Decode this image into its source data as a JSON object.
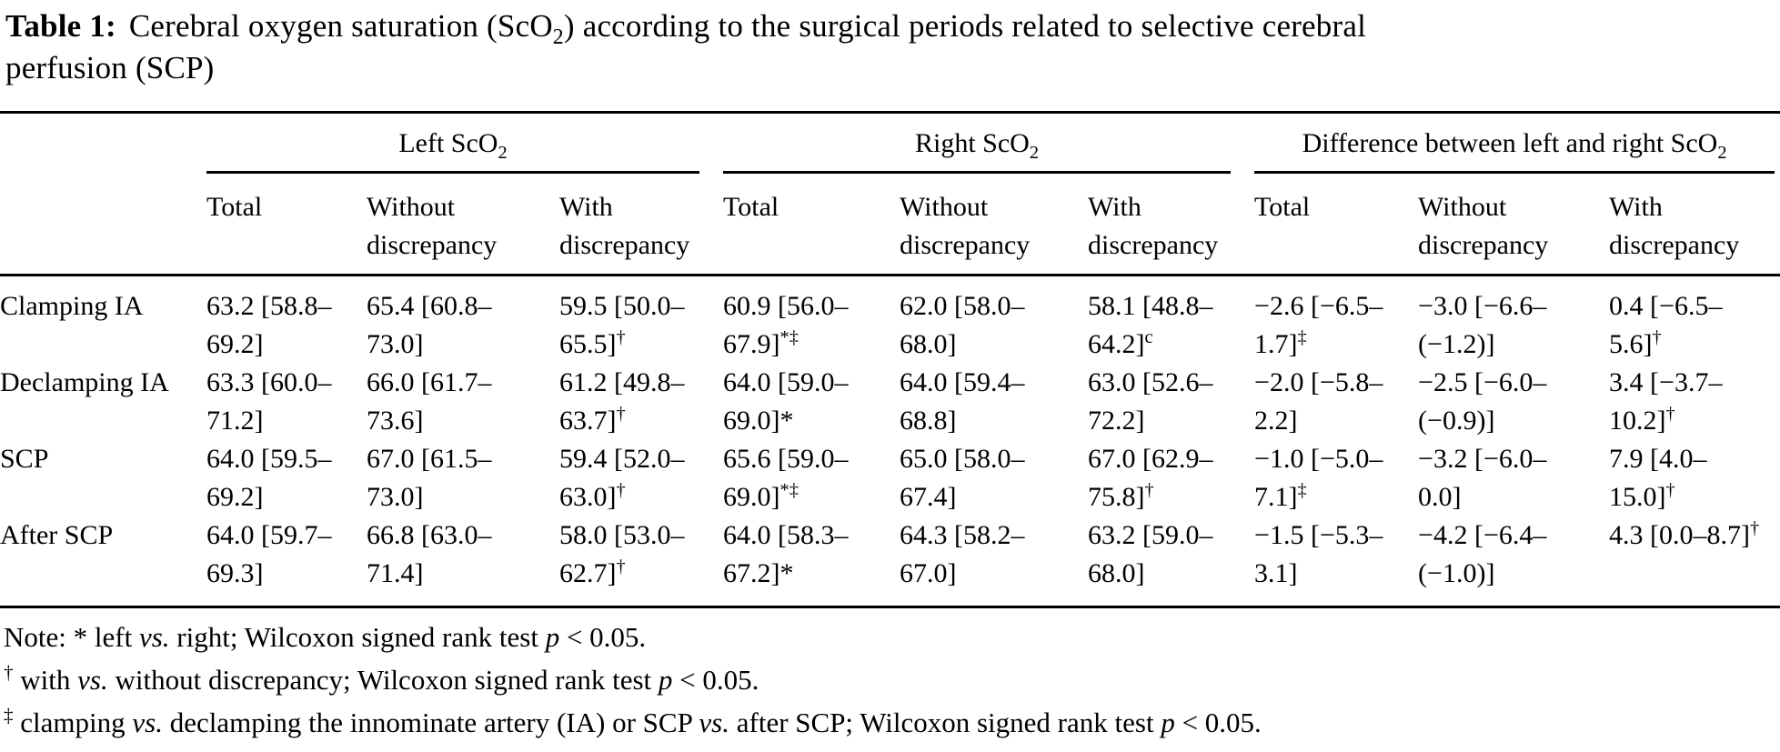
{
  "colors": {
    "text": "#000000",
    "background": "#ffffff",
    "rule": "#000000"
  },
  "title": {
    "label": "Table 1:",
    "text_before_sub": "Cerebral oxygen saturation (ScO",
    "sub": "2",
    "text_after_sub": ") according to the surgical periods related to selective cerebral",
    "line2": "perfusion (SCP)"
  },
  "table": {
    "groups": [
      {
        "name": "Left ScO",
        "sub": "2"
      },
      {
        "name": "Right ScO",
        "sub": "2"
      },
      {
        "name": "Difference between left and right ScO",
        "sub": "2"
      }
    ],
    "subheaders": [
      "Total",
      "Without discrepancy",
      "With discrepancy"
    ],
    "rows": [
      {
        "label": "Clamping IA",
        "cells": [
          {
            "value": "63.2 [58.8–69.2]",
            "sup": ""
          },
          {
            "value": "65.4 [60.8–73.0]",
            "sup": ""
          },
          {
            "value": "59.5 [50.0–65.5]",
            "sup": "†"
          },
          {
            "value": "60.9 [56.0–67.9]",
            "sup": "*‡"
          },
          {
            "value": "62.0 [58.0–68.0]",
            "sup": ""
          },
          {
            "value": "58.1 [48.8–64.2]",
            "sup": "c"
          },
          {
            "value": "−2.6 [−6.5–1.7]",
            "sup": "‡"
          },
          {
            "value": "−3.0 [−6.6–(−1.2)]",
            "sup": ""
          },
          {
            "value": "0.4 [−6.5–5.6]",
            "sup": "†"
          }
        ]
      },
      {
        "label": "Declamping IA",
        "cells": [
          {
            "value": "63.3 [60.0–71.2]",
            "sup": ""
          },
          {
            "value": "66.0 [61.7–73.6]",
            "sup": ""
          },
          {
            "value": "61.2 [49.8–63.7]",
            "sup": "†"
          },
          {
            "value": "64.0 [59.0–69.0]*",
            "sup": ""
          },
          {
            "value": "64.0 [59.4–68.8]",
            "sup": ""
          },
          {
            "value": "63.0 [52.6–72.2]",
            "sup": ""
          },
          {
            "value": "−2.0 [−5.8–2.2]",
            "sup": ""
          },
          {
            "value": "−2.5 [−6.0–(−0.9)]",
            "sup": ""
          },
          {
            "value": "3.4 [−3.7–10.2]",
            "sup": "†"
          }
        ]
      },
      {
        "label": "SCP",
        "cells": [
          {
            "value": "64.0 [59.5–69.2]",
            "sup": ""
          },
          {
            "value": "67.0 [61.5–73.0]",
            "sup": ""
          },
          {
            "value": "59.4 [52.0–63.0]",
            "sup": "†"
          },
          {
            "value": "65.6 [59.0–69.0]",
            "sup": "*‡"
          },
          {
            "value": "65.0 [58.0–67.4]",
            "sup": ""
          },
          {
            "value": "67.0 [62.9–75.8]",
            "sup": "†"
          },
          {
            "value": "−1.0 [−5.0–7.1]",
            "sup": "‡"
          },
          {
            "value": "−3.2 [−6.0–0.0]",
            "sup": ""
          },
          {
            "value": "7.9 [4.0–15.0]",
            "sup": "†"
          }
        ]
      },
      {
        "label": "After SCP",
        "cells": [
          {
            "value": "64.0 [59.7–69.3]",
            "sup": ""
          },
          {
            "value": "66.8 [63.0–71.4]",
            "sup": ""
          },
          {
            "value": "58.0 [53.0–62.7]",
            "sup": "†"
          },
          {
            "value": "64.0 [58.3–67.2]*",
            "sup": ""
          },
          {
            "value": "64.3 [58.2–67.0]",
            "sup": ""
          },
          {
            "value": "63.2 [59.0–68.0]",
            "sup": ""
          },
          {
            "value": "−1.5 [−5.3–3.1]",
            "sup": ""
          },
          {
            "value": "−4.2 [−6.4–(−1.0)]",
            "sup": ""
          },
          {
            "value": "4.3 [0.0–8.7]",
            "sup": "†"
          }
        ]
      }
    ]
  },
  "notes": [
    [
      {
        "t": "Note: * left "
      },
      {
        "t": "vs.",
        "i": 1
      },
      {
        "t": " right; Wilcoxon signed rank test "
      },
      {
        "t": "p",
        "i": 1
      },
      {
        "t": " < 0.05."
      }
    ],
    [
      {
        "t": "‡",
        "sup": 0,
        "hidden": true
      },
      {
        "t": "†",
        "sup": 1
      },
      {
        "t": " with "
      },
      {
        "t": "vs.",
        "i": 1
      },
      {
        "t": " without discrepancy; Wilcoxon signed rank test "
      },
      {
        "t": "p",
        "i": 1
      },
      {
        "t": " < 0.05."
      }
    ],
    [
      {
        "t": "‡",
        "sup": 1
      },
      {
        "t": " clamping "
      },
      {
        "t": "vs.",
        "i": 1
      },
      {
        "t": " declamping the innominate artery (IA) or SCP "
      },
      {
        "t": "vs.",
        "i": 1
      },
      {
        "t": " after SCP; Wilcoxon signed rank test "
      },
      {
        "t": "p",
        "i": 1
      },
      {
        "t": " < 0.05."
      }
    ]
  ]
}
